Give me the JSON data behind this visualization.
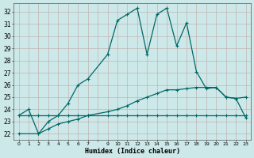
{
  "xlabel": "Humidex (Indice chaleur)",
  "bg_color": "#cce8e8",
  "grid_color": "#b8c8c0",
  "line_color": "#006868",
  "xlim": [
    -0.5,
    23.5
  ],
  "ylim": [
    21.5,
    32.7
  ],
  "yticks": [
    22,
    23,
    24,
    25,
    26,
    27,
    28,
    29,
    30,
    31,
    32
  ],
  "xtick_labels": [
    "0",
    "1",
    "2",
    "3",
    "4",
    "5",
    "6",
    "7",
    "",
    "9",
    "10",
    "11",
    "12",
    "13",
    "14",
    "15",
    "16",
    "17",
    "18",
    "19",
    "20",
    "21",
    "22",
    "23"
  ],
  "xtick_pos": [
    0,
    1,
    2,
    3,
    4,
    5,
    6,
    7,
    8,
    9,
    10,
    11,
    12,
    13,
    14,
    15,
    16,
    17,
    18,
    19,
    20,
    21,
    22,
    23
  ],
  "line1_x": [
    0,
    1,
    2,
    3,
    4,
    5,
    6,
    7,
    9,
    10,
    11,
    12,
    13,
    14,
    15,
    16,
    17,
    18,
    19,
    20,
    21,
    22,
    23
  ],
  "line1_y": [
    23.5,
    24.0,
    22.0,
    23.0,
    23.5,
    24.5,
    26.0,
    26.5,
    28.5,
    31.3,
    31.8,
    32.3,
    28.5,
    31.8,
    32.3,
    29.2,
    31.1,
    27.1,
    25.7,
    25.8,
    25.0,
    24.9,
    25.0
  ],
  "line2_x": [
    0,
    1,
    2,
    3,
    4,
    5,
    6,
    7,
    9,
    10,
    11,
    12,
    13,
    14,
    15,
    16,
    17,
    18,
    19,
    20,
    21,
    22,
    23
  ],
  "line2_y": [
    23.5,
    23.5,
    23.5,
    23.5,
    23.5,
    23.5,
    23.5,
    23.5,
    23.5,
    23.5,
    23.5,
    23.5,
    23.5,
    23.5,
    23.5,
    23.5,
    23.5,
    23.5,
    23.5,
    23.5,
    23.5,
    23.5,
    23.5
  ],
  "line3_x": [
    0,
    2,
    3,
    4,
    5,
    6,
    7,
    9,
    10,
    11,
    12,
    13,
    14,
    15,
    16,
    17,
    18,
    19,
    20,
    21,
    22,
    23
  ],
  "line3_y": [
    22.0,
    22.0,
    22.4,
    22.8,
    23.0,
    23.2,
    23.5,
    23.8,
    24.0,
    24.3,
    24.7,
    25.0,
    25.3,
    25.6,
    25.6,
    25.7,
    25.8,
    25.8,
    25.8,
    25.0,
    24.9,
    23.3
  ]
}
